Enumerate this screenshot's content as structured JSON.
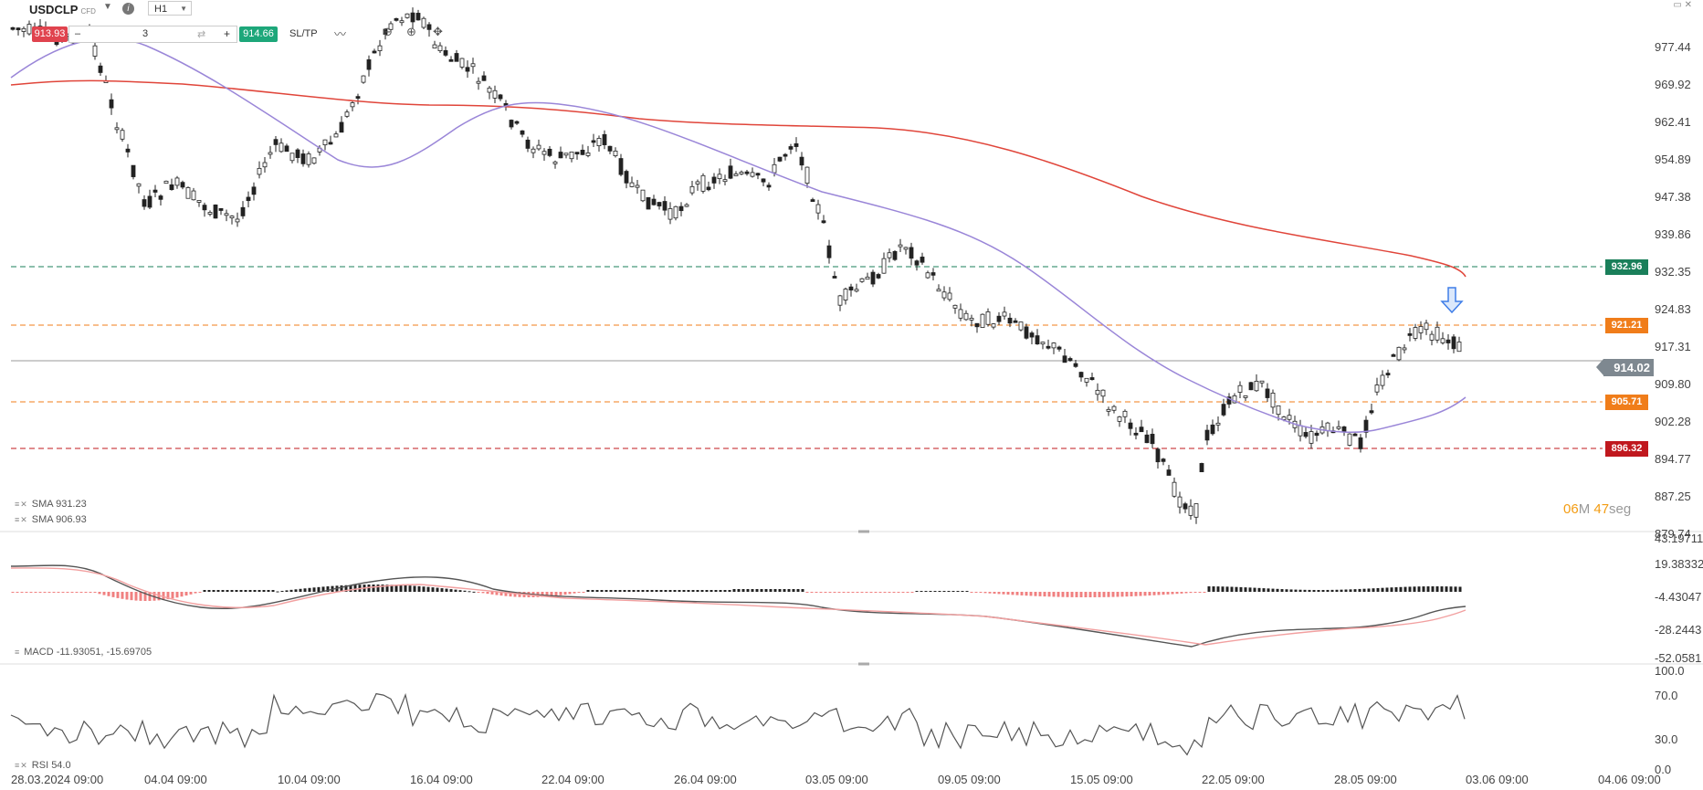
{
  "header": {
    "symbol": "USDCLP",
    "symbol_type": "CFD",
    "timeframe": "H1",
    "sell_price": "913.93",
    "buy_price": "914.66",
    "quantity": "3",
    "sltp_label": "SL/TP",
    "minus": "–",
    "plus": "+",
    "info_glyph": "i"
  },
  "price_axis": [
    "977.44",
    "969.92",
    "962.41",
    "954.89",
    "947.38",
    "939.86",
    "932.35",
    "924.83",
    "917.31",
    "909.80",
    "902.28",
    "894.77",
    "887.25",
    "879.74"
  ],
  "level_tags": [
    {
      "value": "932.96",
      "color": "#1a7f5a"
    },
    {
      "value": "921.21",
      "color": "#f07d1a"
    },
    {
      "value": "905.71",
      "color": "#f07d1a"
    },
    {
      "value": "896.32",
      "color": "#c0181e"
    }
  ],
  "current_price": "914.02",
  "countdown": {
    "min": "06",
    "min_unit": "M",
    "sec": "47",
    "sec_unit": "seg"
  },
  "legends": {
    "sma1": "SMA 931.23",
    "sma2": "SMA 906.93",
    "macd": "MACD -11.93051, -15.69705",
    "rsi": "RSI 54.0"
  },
  "macd_axis": [
    "43.19711",
    "19.38332",
    "-4.43047",
    "-28.2443",
    "-52.0581"
  ],
  "rsi_axis": [
    "100.0",
    "70.0",
    "30.0",
    "0.0"
  ],
  "time_axis": [
    "28.03.2024 09:00",
    "04.04 09:00",
    "10.04 09:00",
    "16.04 09:00",
    "22.04 09:00",
    "26.04 09:00",
    "03.05 09:00",
    "09.05 09:00",
    "15.05 09:00",
    "22.05 09:00",
    "28.05 09:00",
    "03.06 09:00",
    "04.06 09:00"
  ],
  "colors": {
    "up": "#ffffff",
    "down": "#222222",
    "sma_slow": "#e0453a",
    "sma_fast": "#9a86d8",
    "macd": "#555555",
    "signal": "#f2a0a0"
  },
  "icons": [
    "chevron-down-icon",
    "info-icon",
    "swap-icon",
    "line-chart-icon",
    "zoom-out-icon",
    "zoom-in-icon",
    "crosshair-icon",
    "sell-arrow-icon"
  ]
}
